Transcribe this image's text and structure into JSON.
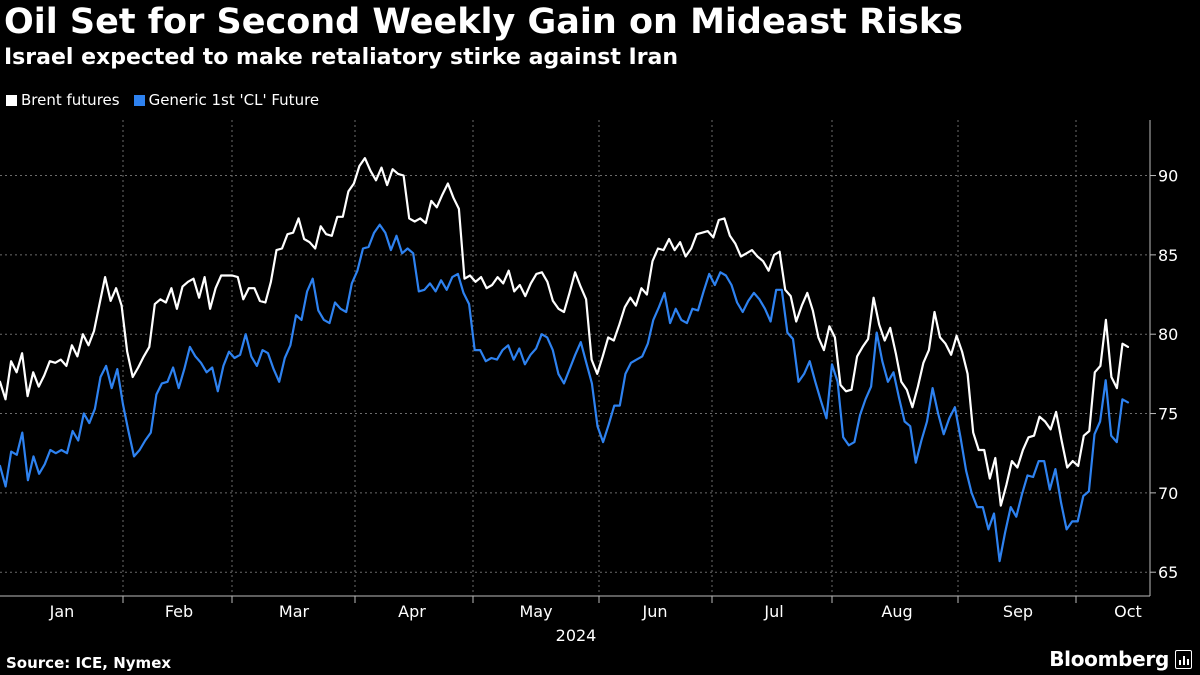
{
  "header": {
    "title": "Oil Set for Second Weekly Gain on Mideast Risks",
    "subtitle": "Israel expected to make retaliatory stirke against Iran"
  },
  "footer": {
    "source": "Source: ICE, Nymex",
    "brand": "Bloomberg"
  },
  "colors": {
    "background": "#000000",
    "brent": "#ffffff",
    "wti": "#2e82f0",
    "grid": "#6b6b6b"
  },
  "chart_data": {
    "type": "line",
    "title": "Oil Set for Second Weekly Gain on Mideast Risks",
    "subtitle": "Israel expected to make retaliatory stirke against Iran",
    "x_labels": [
      "Jan",
      "Feb",
      "Mar",
      "Apr",
      "May",
      "Jun",
      "Jul",
      "Aug",
      "Sep",
      "Oct"
    ],
    "year_label": "2024",
    "yticks": [
      65,
      70,
      75,
      80,
      85,
      90
    ],
    "ylim": [
      63.5,
      93.5
    ],
    "y_axis_side": "right",
    "grid": true,
    "legend_position": "top-left",
    "series": [
      {
        "name": "Brent futures",
        "color": "#ffffff",
        "values": [
          77.0,
          75.9,
          78.3,
          77.6,
          78.8,
          76.1,
          77.6,
          76.7,
          77.4,
          78.3,
          78.2,
          78.4,
          78.0,
          79.3,
          78.6,
          80.0,
          79.3,
          80.2,
          81.9,
          83.6,
          82.1,
          82.9,
          81.8,
          78.9,
          77.3,
          77.9,
          78.6,
          79.2,
          81.9,
          82.2,
          82.0,
          82.9,
          81.6,
          83.0,
          83.3,
          83.5,
          82.3,
          83.6,
          81.6,
          82.9,
          83.7,
          83.7,
          83.7,
          83.6,
          82.2,
          82.9,
          82.9,
          82.1,
          82.0,
          83.3,
          85.3,
          85.4,
          86.3,
          86.4,
          87.3,
          86.0,
          85.8,
          85.4,
          86.8,
          86.3,
          86.2,
          87.4,
          87.4,
          89.0,
          89.5,
          90.6,
          91.1,
          90.3,
          89.7,
          90.5,
          89.4,
          90.4,
          90.1,
          90.0,
          87.3,
          87.1,
          87.3,
          87.0,
          88.4,
          88.0,
          88.8,
          89.5,
          88.6,
          87.9,
          83.5,
          83.7,
          83.3,
          83.6,
          82.9,
          83.1,
          83.6,
          83.2,
          84.0,
          82.7,
          83.1,
          82.4,
          83.2,
          83.8,
          83.9,
          83.3,
          82.1,
          81.6,
          81.4,
          82.6,
          83.9,
          83.0,
          82.2,
          78.4,
          77.5,
          78.6,
          79.8,
          79.6,
          80.6,
          81.7,
          82.3,
          81.8,
          82.9,
          82.5,
          84.6,
          85.4,
          85.3,
          86.0,
          85.3,
          85.8,
          84.9,
          85.4,
          86.3,
          86.4,
          86.5,
          86.1,
          87.2,
          87.3,
          86.2,
          85.7,
          84.9,
          85.1,
          85.3,
          84.9,
          84.6,
          84.0,
          85.0,
          85.2,
          82.8,
          82.4,
          80.8,
          81.8,
          82.6,
          81.5,
          79.8,
          79.0,
          80.5,
          79.8,
          76.8,
          76.4,
          76.5,
          78.6,
          79.2,
          79.7,
          82.3,
          80.6,
          79.6,
          80.4,
          78.8,
          77.0,
          76.5,
          75.4,
          76.7,
          78.2,
          79.0,
          81.4,
          79.8,
          79.4,
          78.7,
          79.9,
          78.9,
          77.5,
          73.8,
          72.7,
          72.7,
          70.9,
          72.2,
          69.2,
          70.5,
          72.0,
          71.6,
          72.7,
          73.5,
          73.6,
          74.8,
          74.5,
          74.0,
          75.1,
          73.3,
          71.6,
          72.0,
          71.7,
          73.6,
          73.9,
          77.6,
          78.0,
          80.9,
          77.3,
          76.6,
          79.4,
          79.2
        ]
      },
      {
        "name": "Generic 1st 'CL' Future",
        "color": "#2e82f0",
        "values": [
          71.7,
          70.4,
          72.6,
          72.4,
          73.8,
          70.8,
          72.3,
          71.2,
          71.8,
          72.7,
          72.5,
          72.7,
          72.5,
          73.9,
          73.3,
          75.0,
          74.4,
          75.3,
          77.3,
          78.0,
          76.6,
          77.8,
          75.6,
          73.9,
          72.3,
          72.7,
          73.3,
          73.8,
          76.2,
          76.9,
          77.0,
          77.9,
          76.6,
          77.8,
          79.2,
          78.6,
          78.2,
          77.6,
          77.9,
          76.4,
          78.0,
          78.9,
          78.5,
          78.7,
          80.0,
          78.6,
          78.0,
          79.0,
          78.8,
          77.8,
          77.0,
          78.5,
          79.3,
          81.2,
          80.9,
          82.7,
          83.5,
          81.5,
          80.9,
          80.7,
          82.0,
          81.6,
          81.4,
          83.2,
          84.0,
          85.4,
          85.5,
          86.4,
          86.9,
          86.4,
          85.3,
          86.2,
          85.1,
          85.4,
          85.1,
          82.7,
          82.8,
          83.2,
          82.7,
          83.4,
          82.8,
          83.6,
          83.8,
          82.6,
          81.9,
          79.0,
          79.0,
          78.3,
          78.5,
          78.4,
          79.0,
          79.3,
          78.4,
          79.1,
          78.1,
          78.7,
          79.1,
          80.0,
          79.8,
          79.0,
          77.5,
          76.9,
          77.8,
          78.7,
          79.5,
          78.2,
          76.9,
          74.2,
          73.2,
          74.3,
          75.5,
          75.5,
          77.5,
          78.2,
          78.4,
          78.6,
          79.4,
          80.9,
          81.7,
          82.6,
          80.7,
          81.6,
          80.9,
          80.7,
          81.6,
          81.5,
          82.7,
          83.8,
          83.1,
          83.9,
          83.7,
          83.1,
          82.0,
          81.4,
          82.1,
          82.6,
          82.2,
          81.6,
          80.8,
          82.8,
          82.8,
          80.1,
          79.7,
          77.0,
          77.5,
          78.3,
          77.0,
          75.8,
          74.7,
          78.1,
          77.0,
          73.5,
          73.0,
          73.2,
          74.9,
          75.9,
          76.7,
          80.1,
          78.3,
          77.0,
          77.6,
          76.0,
          74.5,
          74.2,
          71.9,
          73.3,
          74.5,
          76.6,
          75.0,
          73.7,
          74.7,
          75.4,
          73.5,
          71.4,
          70.0,
          69.1,
          69.1,
          67.7,
          68.7,
          65.7,
          67.5,
          69.1,
          68.5,
          69.9,
          71.1,
          71.0,
          72.0,
          72.0,
          70.2,
          71.5,
          69.4,
          67.7,
          68.2,
          68.2,
          69.8,
          70.1,
          73.7,
          74.5,
          77.1,
          73.6,
          73.2,
          75.9,
          75.7
        ]
      }
    ]
  }
}
